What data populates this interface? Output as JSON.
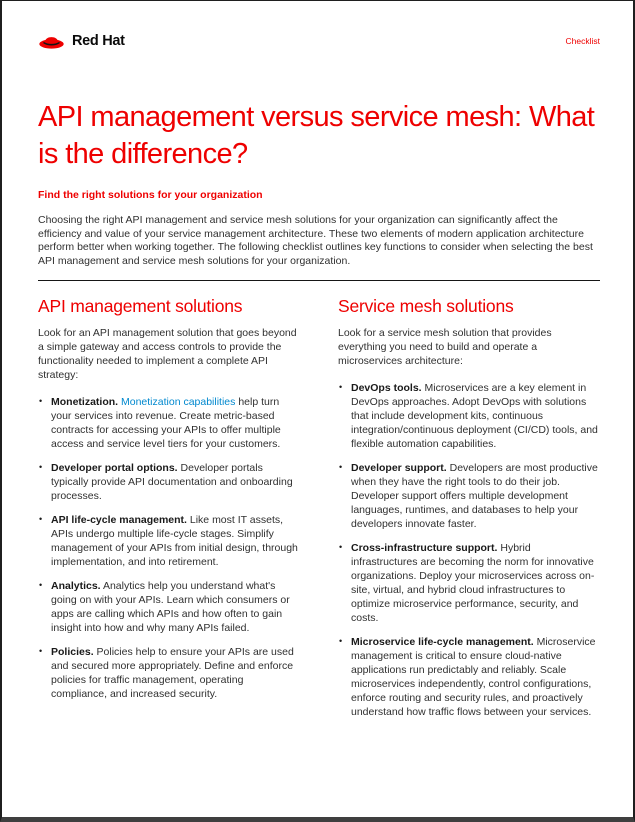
{
  "page": {
    "background": "#ffffff",
    "accent_red": "#ee0000",
    "link_blue": "#0088ce",
    "body_text_color": "#303030"
  },
  "header": {
    "brand_name": "Red Hat",
    "logo_icon": "redhat-fedora-icon",
    "doc_type_label": "Checklist"
  },
  "title": "API management versus service mesh: What is the difference?",
  "title_lines": [
    "API management versus service mesh: What",
    "is the difference?"
  ],
  "subtitle": "Find the right solutions for your organization",
  "intro": "Choosing the right API management and service mesh solutions for your organization can significantly affect the efficiency and value of your service management architecture. These two elements of modern application architecture perform better when working together. The following checklist outlines key functions to consider when selecting the best API management and service mesh solutions for your organization.",
  "bullet_glyph": "•",
  "columns": [
    {
      "heading": "API management solutions",
      "intro": "Look for an API management solution that goes beyond a simple gateway and access controls to provide the functionality needed to implement a complete API strategy:",
      "bullets": [
        {
          "lead": "Monetization.",
          "link_text": "Monetization capabilities",
          "text": " help turn your services into revenue. Create metric-based contracts for accessing your APIs to offer multiple access and service level tiers for your customers."
        },
        {
          "lead": "Developer portal options.",
          "text": " Developer portals typically provide API documentation and onboarding processes."
        },
        {
          "lead": "API life-cycle management.",
          "text": " Like most IT assets, APIs undergo multiple life-cycle stages. Simplify management of your APIs from initial design, through implementation, and into retirement."
        },
        {
          "lead": "Analytics.",
          "text": " Analytics help you understand what's going on with your APIs. Learn which consumers or apps are calling which APIs and how often to gain insight into how and why many APIs failed."
        },
        {
          "lead": "Policies.",
          "text": " Policies help to ensure your APIs are used and secured more appropriately. Define and enforce policies for traffic management, operating compliance, and increased security."
        }
      ]
    },
    {
      "heading": "Service mesh solutions",
      "intro": "Look for a service mesh solution that provides everything you need to build and operate a microservices architecture:",
      "bullets": [
        {
          "lead": "DevOps tools.",
          "text": " Microservices are a key element in DevOps approaches. Adopt DevOps with solutions that include development kits, continuous integration/continuous deployment (CI/CD) tools, and flexible automation capabilities."
        },
        {
          "lead": "Developer support.",
          "text": " Developers are most productive when they have the right tools to do their job. Developer support offers multiple development languages, runtimes, and databases to help your developers innovate faster."
        },
        {
          "lead": "Cross-infrastructure support.",
          "text": " Hybrid infrastructures are becoming the norm for innovative organizations. Deploy your microservices across on-site, virtual, and hybrid cloud infrastructures to optimize microservice performance, security, and costs."
        },
        {
          "lead": "Microservice life-cycle management.",
          "text": " Microservice management is critical to ensure cloud-native applications run predictably and reliably. Scale microservices independently, control configurations, enforce routing and security rules, and proactively understand how traffic flows between your services."
        }
      ]
    }
  ]
}
